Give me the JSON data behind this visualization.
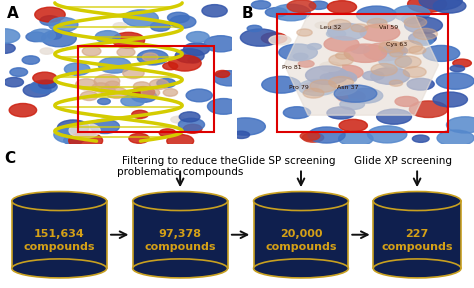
{
  "panel_labels": [
    "A",
    "B",
    "C"
  ],
  "panel_label_fontsize": 11,
  "background_color": "#ffffff",
  "cylinder_color": "#0f1f4e",
  "cylinder_edge_color": "#c8a020",
  "text_color": "#d4a017",
  "arrow_color": "#111111",
  "compounds": [
    "151,634\ncompounds",
    "97,378\ncompounds",
    "20,000\ncompounds",
    "227\ncompounds"
  ],
  "labels_above": [
    "Filtering to reduce the\nproblematic compounds",
    "Glide SP screening",
    "Glide XP screening"
  ],
  "label_above_fontsize": 7.5,
  "compound_fontsize": 8.0,
  "panel_a_bg": "#7090b0",
  "panel_b_bg": "#6080a8",
  "helix_color": "#d4cc00",
  "red_box_color": "#dd0000",
  "protein_blue": "#4070c0",
  "protein_red": "#cc2010",
  "protein_white": "#e8e0d8",
  "protein_peach": "#d4a888"
}
